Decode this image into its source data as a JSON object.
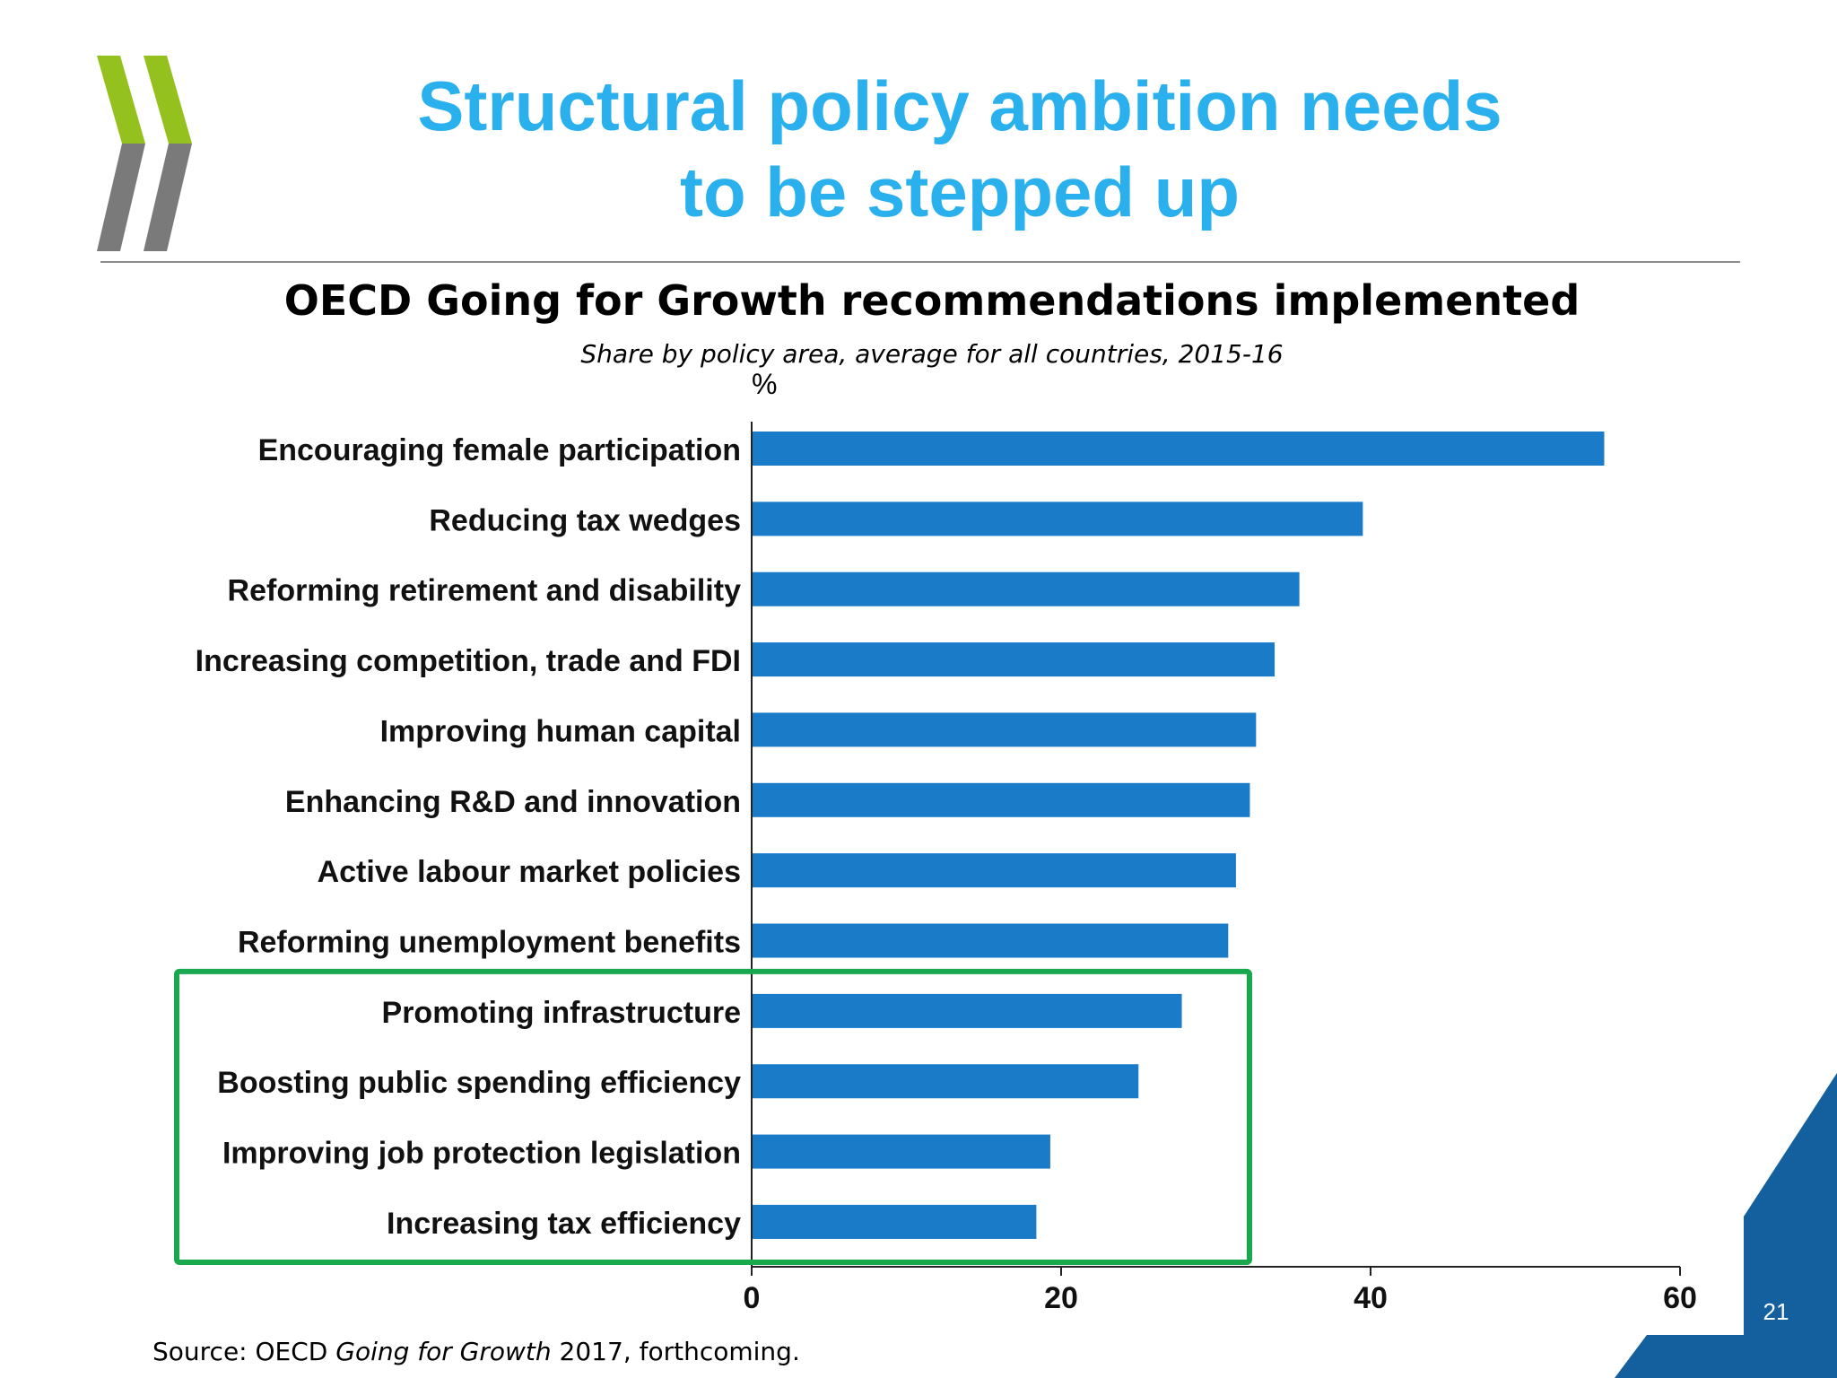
{
  "slide": {
    "title_line1": "Structural policy ambition needs",
    "title_line2": "to be stepped up",
    "source_prefix": "Source: OECD ",
    "source_italic": "Going for Growth",
    "source_suffix": " 2017, forthcoming.",
    "page_number": "21",
    "colors": {
      "title": "#2bb0ee",
      "bar": "#1a7cc9",
      "highlight_box": "#1aa84f",
      "corner": "#14609f",
      "logo_green": "#95c11f",
      "logo_gray": "#7a7a7a"
    }
  },
  "chart_data": {
    "type": "bar",
    "orientation": "horizontal",
    "title": "OECD Going for Growth recommendations implemented",
    "subtitle": "Share by policy area, average for all countries, 2015-16",
    "unit_label": "%",
    "categories": [
      "Encouraging female participation",
      "Reducing tax wedges",
      "Reforming retirement and disability",
      "Increasing competition, trade and FDI",
      "Improving human capital",
      "Enhancing R&D and innovation",
      "Active labour market policies",
      "Reforming unemployment benefits",
      "Promoting infrastructure",
      "Boosting public spending efficiency",
      "Improving job protection legislation",
      "Increasing tax efficiency"
    ],
    "values": [
      55.1,
      39.5,
      35.4,
      33.8,
      32.6,
      32.2,
      31.3,
      30.8,
      27.8,
      25.0,
      19.3,
      18.4
    ],
    "xlim": [
      0,
      60
    ],
    "xticks": [
      "0",
      "20",
      "40",
      "60"
    ],
    "grid": false,
    "highlighted_categories": [
      "Promoting infrastructure",
      "Boosting public spending efficiency",
      "Improving job protection legislation",
      "Increasing tax efficiency"
    ]
  }
}
